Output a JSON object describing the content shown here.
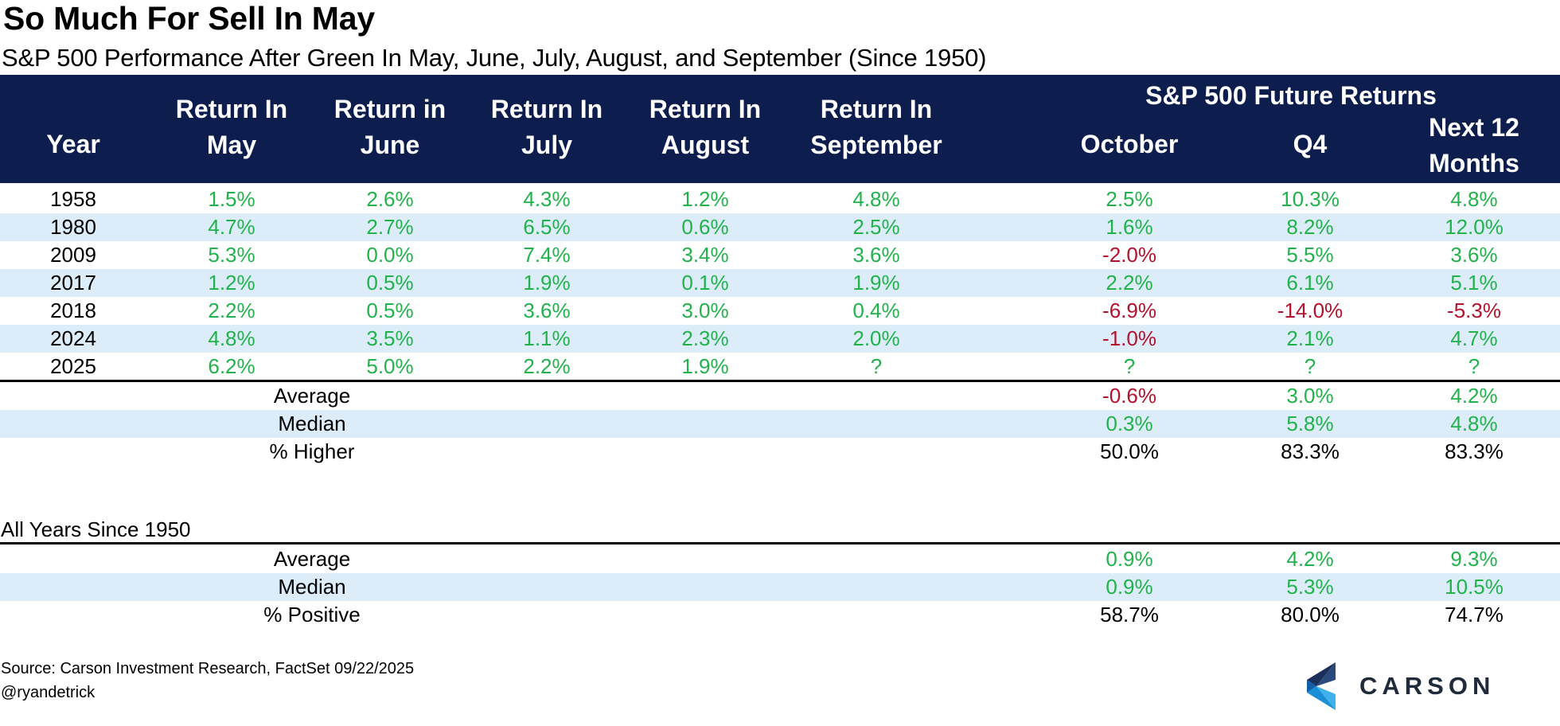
{
  "title": "So Much For Sell In May",
  "subtitle": "S&P 500 Performance After Green In May, June, July, August, and September (Since 1950)",
  "header": {
    "future_title": "S&P 500 Future Returns",
    "columns": [
      {
        "line1": "Year",
        "line2": ""
      },
      {
        "line1": "Return In",
        "line2": "May"
      },
      {
        "line1": "Return in",
        "line2": "June"
      },
      {
        "line1": "Return In",
        "line2": "July"
      },
      {
        "line1": "Return In",
        "line2": "August"
      },
      {
        "line1": "Return In",
        "line2": "September"
      },
      {
        "line1": "October",
        "line2": ""
      },
      {
        "line1": "Q4",
        "line2": ""
      },
      {
        "line1": "Next 12",
        "line2": "Months"
      }
    ]
  },
  "colors": {
    "header_bg": "#0c1d4e",
    "positive": "#22b24c",
    "negative": "#b3122d",
    "row_shade": "#dcedf9"
  },
  "chart_data": {
    "type": "table",
    "title": "So Much For Sell In May",
    "subtitle": "S&P 500 Performance After Green In May, June, July, August, and September (Since 1950)",
    "columns": [
      "Year",
      "Return In May",
      "Return in June",
      "Return In July",
      "Return In August",
      "Return In September",
      "October",
      "Q4",
      "Next 12 Months"
    ],
    "rows": [
      {
        "year": "1958",
        "values": [
          "1.5%",
          "2.6%",
          "4.3%",
          "1.2%",
          "4.8%",
          "2.5%",
          "10.3%",
          "4.8%"
        ]
      },
      {
        "year": "1980",
        "values": [
          "4.7%",
          "2.7%",
          "6.5%",
          "0.6%",
          "2.5%",
          "1.6%",
          "8.2%",
          "12.0%"
        ]
      },
      {
        "year": "2009",
        "values": [
          "5.3%",
          "0.0%",
          "7.4%",
          "3.4%",
          "3.6%",
          "-2.0%",
          "5.5%",
          "3.6%"
        ]
      },
      {
        "year": "2017",
        "values": [
          "1.2%",
          "0.5%",
          "1.9%",
          "0.1%",
          "1.9%",
          "2.2%",
          "6.1%",
          "5.1%"
        ]
      },
      {
        "year": "2018",
        "values": [
          "2.2%",
          "0.5%",
          "3.6%",
          "3.0%",
          "0.4%",
          "-6.9%",
          "-14.0%",
          "-5.3%"
        ]
      },
      {
        "year": "2024",
        "values": [
          "4.8%",
          "3.5%",
          "1.1%",
          "2.3%",
          "2.0%",
          "-1.0%",
          "2.1%",
          "4.7%"
        ]
      },
      {
        "year": "2025",
        "values": [
          "6.2%",
          "5.0%",
          "2.2%",
          "1.9%",
          "?",
          "?",
          "?",
          "?"
        ]
      }
    ],
    "summary": [
      {
        "label": "Average",
        "values": [
          "-0.6%",
          "3.0%",
          "4.2%"
        ],
        "colored": true
      },
      {
        "label": "Median",
        "values": [
          "0.3%",
          "5.8%",
          "4.8%"
        ],
        "colored": true
      },
      {
        "label": "% Higher",
        "values": [
          "50.0%",
          "83.3%",
          "83.3%"
        ],
        "colored": false
      }
    ],
    "all_years_title": "All Years Since 1950",
    "all_years": [
      {
        "label": "Average",
        "values": [
          "0.9%",
          "4.2%",
          "9.3%"
        ],
        "colored": true
      },
      {
        "label": "Median",
        "values": [
          "0.9%",
          "5.3%",
          "10.5%"
        ],
        "colored": true
      },
      {
        "label": "% Positive",
        "values": [
          "58.7%",
          "80.0%",
          "74.7%"
        ],
        "colored": false
      }
    ]
  },
  "footer": {
    "source": "Source: Carson Investment Research, FactSet 09/22/2025",
    "handle": "@ryandetrick",
    "logo_text": "CARSON"
  }
}
